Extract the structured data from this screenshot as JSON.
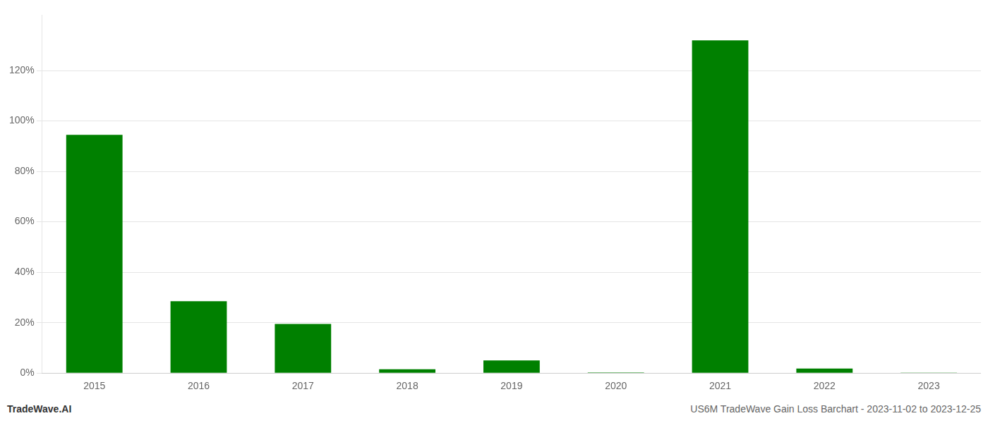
{
  "chart_data": {
    "type": "bar",
    "categories": [
      "2015",
      "2016",
      "2017",
      "2018",
      "2019",
      "2020",
      "2021",
      "2022",
      "2023"
    ],
    "values": [
      0.945,
      0.285,
      0.195,
      0.015,
      0.05,
      0.003,
      1.32,
      0.018,
      0.002
    ],
    "color": "#008000",
    "ylim": [
      0,
      1.42
    ],
    "yticks": [
      {
        "value": 0,
        "label": "0%"
      },
      {
        "value": 0.2,
        "label": "20%"
      },
      {
        "value": 0.4,
        "label": "40%"
      },
      {
        "value": 0.6,
        "label": "60%"
      },
      {
        "value": 0.8,
        "label": "80%"
      },
      {
        "value": 1.0,
        "label": "100%"
      },
      {
        "value": 1.2,
        "label": "120%"
      }
    ],
    "grid": true,
    "annotations": [
      "TradeWave.AI",
      "US6M TradeWave Gain Loss Barchart - 2023-11-02 to 2023-12-25"
    ]
  }
}
